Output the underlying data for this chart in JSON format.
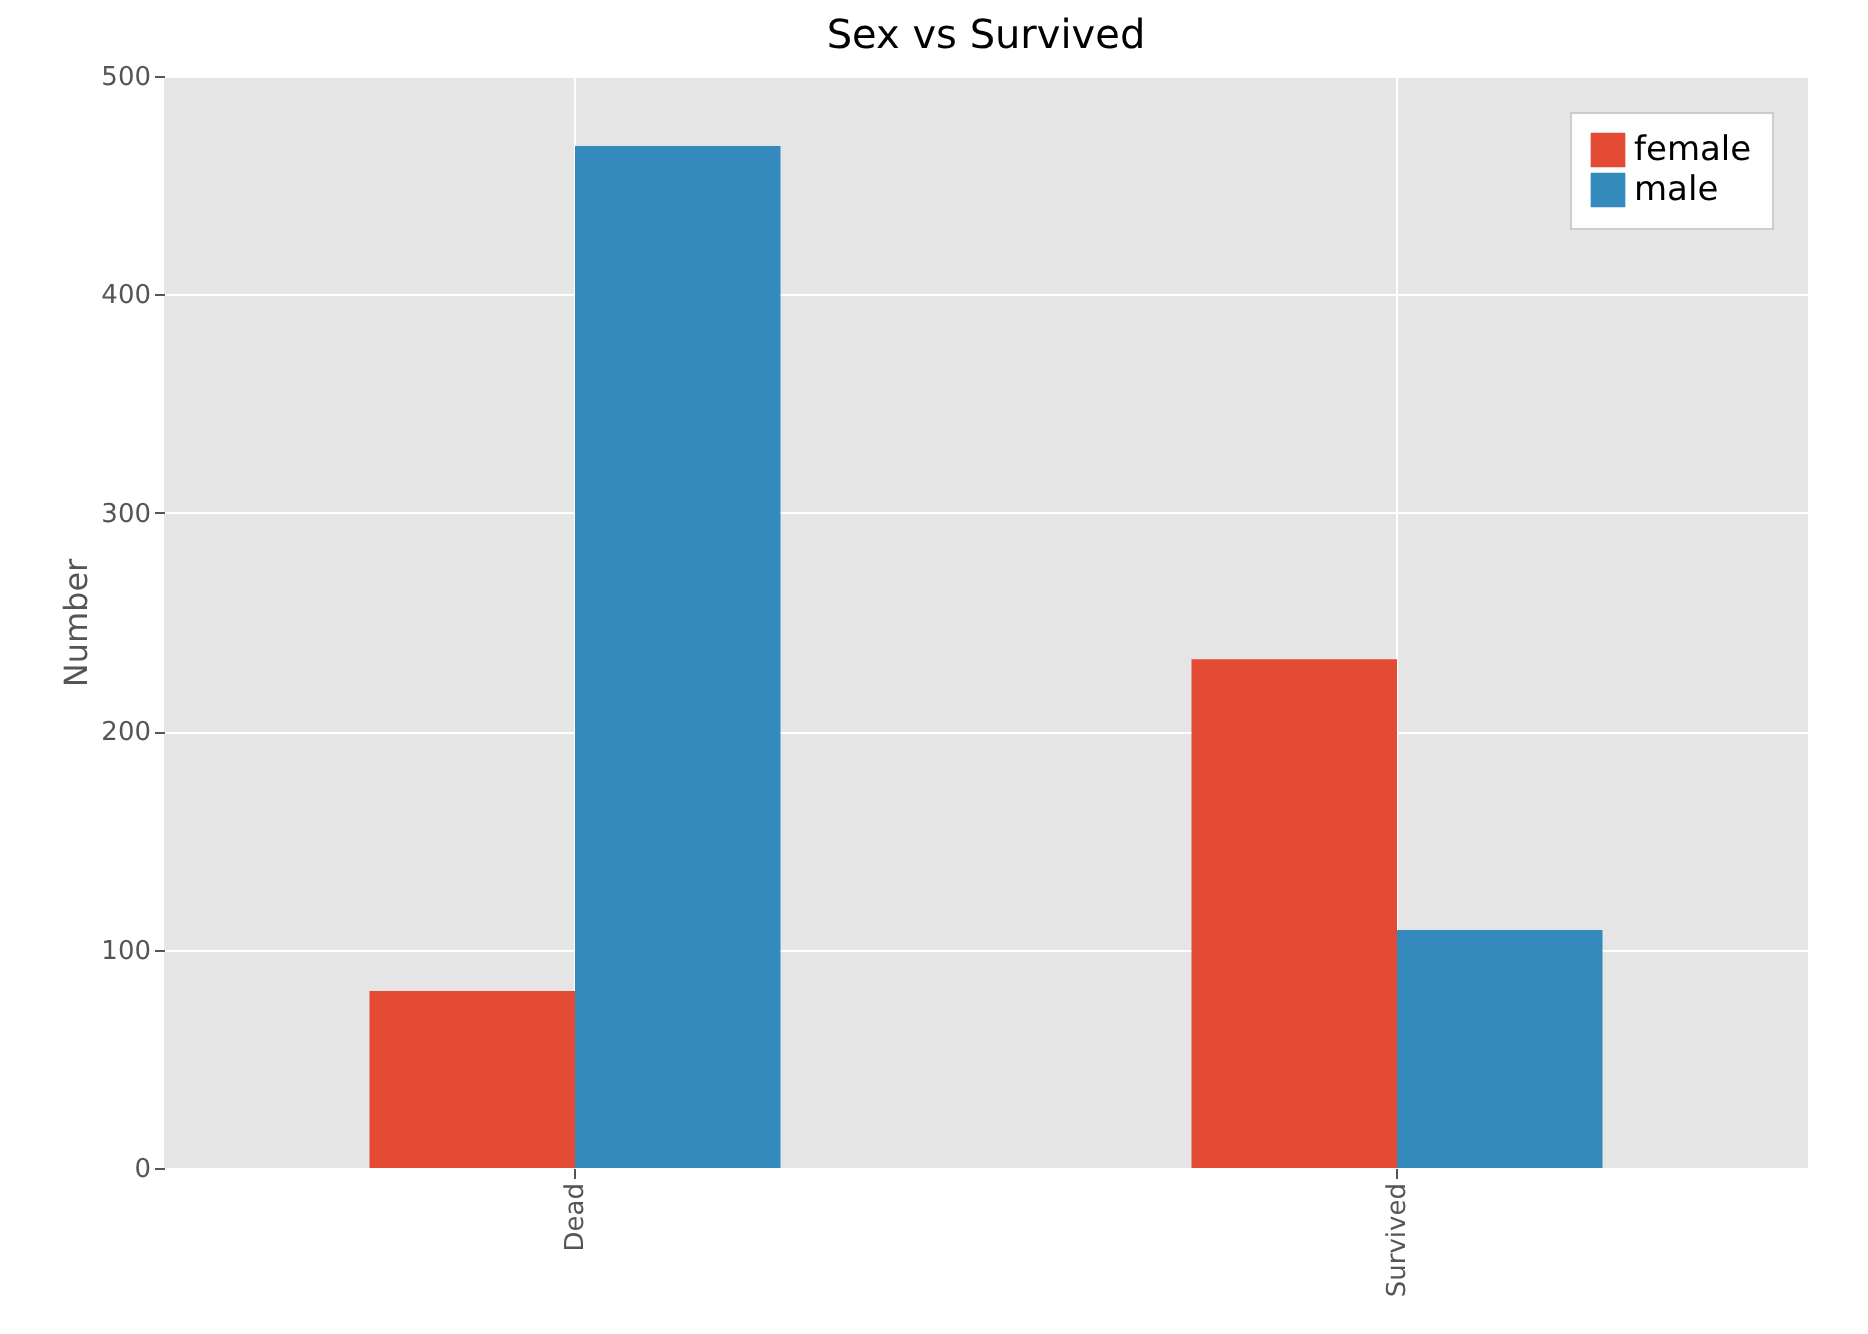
{
  "chart_data": {
    "type": "bar",
    "title": "Sex vs Survived",
    "ylabel": "Number",
    "categories": [
      "Dead",
      "Survived"
    ],
    "series": [
      {
        "name": "female",
        "color": "#e24a33",
        "values": [
          81,
          233
        ]
      },
      {
        "name": "male",
        "color": "#348abd",
        "values": [
          468,
          109
        ]
      }
    ],
    "ylim": [
      0,
      500
    ],
    "yticks": [
      0,
      100,
      200,
      300,
      400,
      500
    ],
    "grid": true,
    "legend": "top right"
  }
}
